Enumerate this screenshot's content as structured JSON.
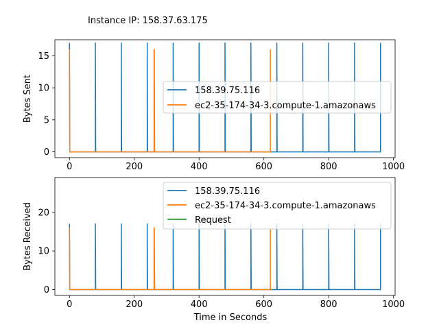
{
  "figure_title": "Instance IP: 158.37.63.175",
  "colors": {
    "blue": "#1f77b4",
    "orange": "#ff7f0e",
    "green": "#2ca02c"
  },
  "chart_data": [
    {
      "type": "line",
      "title": "",
      "xlabel": "",
      "ylabel": "Bytes Sent",
      "xlim": [
        -45,
        1005
      ],
      "ylim": [
        -0.9,
        17.5
      ],
      "xticks": [
        0,
        200,
        400,
        600,
        800,
        1000
      ],
      "yticks": [
        0,
        5,
        10,
        15
      ],
      "legend": "center-right",
      "series": [
        {
          "name": "158.39.75.116",
          "color": "#1f77b4",
          "x": [
            0,
            0,
            1,
            80,
            80,
            81,
            160,
            160,
            161,
            240,
            240,
            241,
            320,
            320,
            321,
            400,
            400,
            401,
            480,
            480,
            481,
            560,
            560,
            561,
            640,
            640,
            641,
            720,
            720,
            721,
            800,
            800,
            801,
            880,
            880,
            881,
            960,
            960
          ],
          "y": [
            17,
            17,
            0,
            0,
            17,
            0,
            0,
            17,
            0,
            0,
            17,
            0,
            0,
            17,
            0,
            0,
            17,
            0,
            0,
            17,
            0,
            0,
            17,
            0,
            0,
            17,
            0,
            0,
            17,
            0,
            0,
            17,
            0,
            0,
            17,
            0,
            0,
            17
          ]
        },
        {
          "name": "ec2-35-174-34-3.compute-1.amazonaws",
          "color": "#ff7f0e",
          "x": [
            0,
            0,
            1,
            261,
            261,
            262,
            262,
            263,
            620,
            620
          ],
          "y": [
            16,
            16,
            0,
            0,
            16,
            0,
            16,
            0,
            0,
            16
          ]
        }
      ]
    },
    {
      "type": "line",
      "title": "",
      "xlabel": "Time in Seconds",
      "ylabel": "Bytes Received",
      "xlim": [
        -45,
        1005
      ],
      "ylim": [
        -1.5,
        29
      ],
      "xticks": [
        0,
        200,
        400,
        600,
        800,
        1000
      ],
      "yticks": [
        0,
        10,
        20
      ],
      "legend": "upper-right",
      "series": [
        {
          "name": "158.39.75.116",
          "color": "#1f77b4",
          "x": [
            0,
            0,
            1,
            80,
            80,
            81,
            160,
            160,
            161,
            240,
            240,
            241,
            320,
            320,
            321,
            400,
            400,
            401,
            480,
            480,
            481,
            560,
            560,
            561,
            640,
            640,
            641,
            720,
            720,
            721,
            800,
            800,
            801,
            880,
            880,
            881,
            960,
            960
          ],
          "y": [
            17,
            17,
            0,
            0,
            17,
            0,
            0,
            17,
            0,
            0,
            17,
            0,
            0,
            17,
            0,
            0,
            17,
            0,
            0,
            17,
            0,
            0,
            17,
            0,
            0,
            17,
            0,
            0,
            17,
            0,
            0,
            17,
            0,
            0,
            17,
            0,
            0,
            17
          ]
        },
        {
          "name": "ec2-35-174-34-3.compute-1.amazonaws",
          "color": "#ff7f0e",
          "x": [
            0,
            0,
            1,
            261,
            261,
            262,
            262,
            263,
            620,
            620
          ],
          "y": [
            16,
            16,
            0,
            0,
            16,
            0,
            16,
            0,
            0,
            16
          ]
        },
        {
          "name": "Request",
          "color": "#2ca02c",
          "x": [],
          "y": []
        }
      ]
    }
  ]
}
